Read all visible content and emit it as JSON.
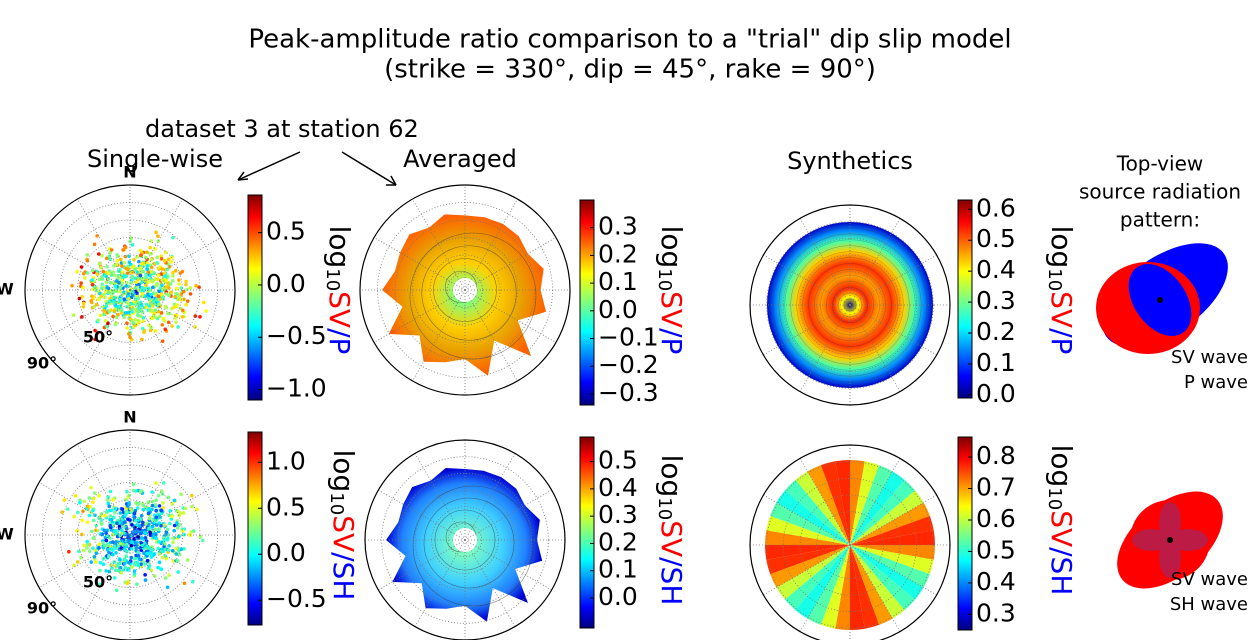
{
  "title": "Peak-amplitude ratio comparison to a \"trial\" dip slip model",
  "subtitle": "(strike = 330°, dip = 45°, rake = 90°)",
  "dataset_label": "dataset 3 at station 62",
  "columns": [
    "Single-wise",
    "Averaged",
    "Synthetics"
  ],
  "radiation_header": [
    "Top-view",
    "source radiation",
    "pattern:"
  ],
  "polar_labels": {
    "north": "N",
    "west": "W",
    "inner": "50°",
    "outer": "90°"
  },
  "rows": [
    {
      "ratio": {
        "log": "log",
        "sub": "10",
        "num": "SV",
        "den": "/P"
      },
      "colorbars": [
        {
          "clim": [
            -1.1,
            0.86
          ],
          "ticks": [
            0.5,
            {
              "value": 0,
              "label": "0.0"
            },
            {
              "value": -0.5,
              "label": "−0.5"
            },
            {
              "value": -1,
              "label": "−1.0"
            }
          ]
        },
        {
          "clim": [
            -0.34,
            0.4
          ],
          "ticks": [
            0.3,
            0.2,
            0.1,
            {
              "value": 0,
              "label": "0.0"
            },
            {
              "value": -0.1,
              "label": "−0.1"
            },
            {
              "value": -0.2,
              "label": "−0.2"
            },
            {
              "value": -0.3,
              "label": "−0.3"
            }
          ]
        },
        {
          "clim": [
            -0.01,
            0.63
          ],
          "ticks": [
            0.6,
            0.5,
            0.4,
            0.3,
            0.2,
            0.1,
            {
              "value": 0,
              "label": "0.0"
            }
          ]
        }
      ],
      "legend": [
        {
          "label": "SV wave",
          "color": "#ff0000"
        },
        {
          "label": "P wave",
          "color": "#0000ff"
        }
      ]
    },
    {
      "ratio": {
        "log": "log",
        "sub": "10",
        "num": "SV",
        "den": "/SH"
      },
      "colorbars": [
        {
          "clim": [
            -0.77,
            1.33
          ],
          "ticks": [
            {
              "value": 1,
              "label": "1.0"
            },
            0.5,
            {
              "value": 0,
              "label": "0.0"
            },
            {
              "value": -0.5,
              "label": "−0.5"
            }
          ]
        },
        {
          "clim": [
            -0.11,
            0.59
          ],
          "ticks": [
            0.5,
            0.4,
            0.3,
            0.2,
            0.1,
            {
              "value": 0,
              "label": "0.0"
            }
          ]
        },
        {
          "clim": [
            0.25,
            0.864
          ],
          "ticks": [
            0.8,
            0.7,
            0.6,
            0.5,
            0.4,
            0.3
          ]
        }
      ],
      "legend": [
        {
          "label": "SV wave",
          "color": "#ff0000"
        },
        {
          "label": "SH wave",
          "color": "#0000ff"
        }
      ]
    }
  ]
}
